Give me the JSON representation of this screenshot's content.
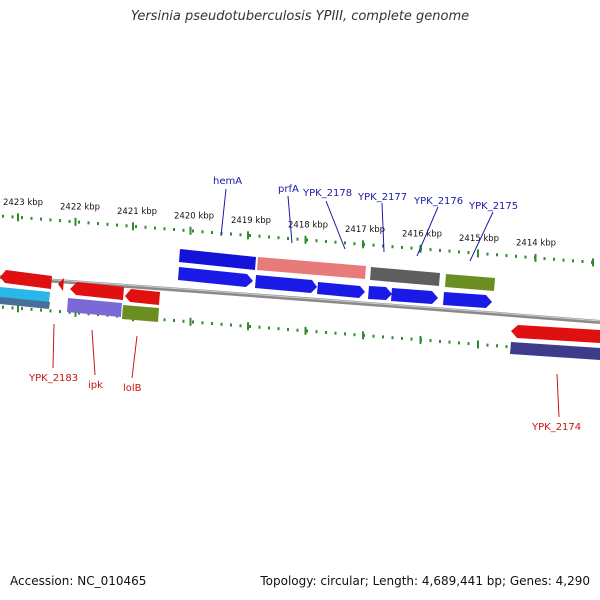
{
  "title": "Yersinia pseudotuberculosis YPIII, complete genome",
  "accession_text": "Accession: NC_010465",
  "topology_text": "Topology: circular; Length: 4,689,441 bp; Genes: 4,290",
  "colors": {
    "backbone": "#8a8a8a",
    "tick": "#2e8b2e",
    "label_top": "#1a1aa8",
    "label_bottom": "#c81414"
  },
  "ticks": [
    "2423 kbp",
    "2422 kbp",
    "2421 kbp",
    "2420 kbp",
    "2419 kbp",
    "2418 kbp",
    "2417 kbp",
    "2416 kbp",
    "2415 kbp",
    "2414 kbp"
  ],
  "genes_top": [
    "hemA",
    "prfA",
    "YPK_2178",
    "YPK_2177",
    "YPK_2176",
    "YPK_2175"
  ],
  "genes_bottom": [
    "YPK_2183",
    "ipk",
    "lolB",
    "YPK_2174"
  ]
}
